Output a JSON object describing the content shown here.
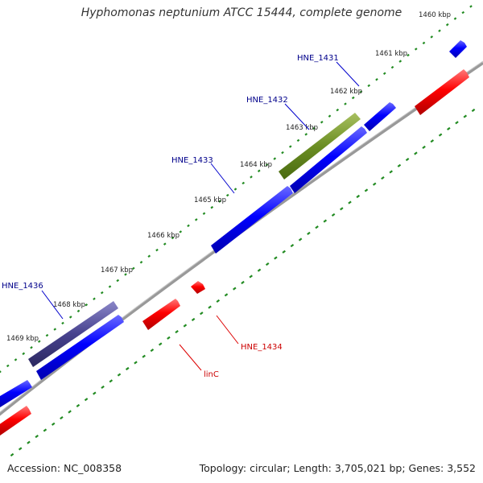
{
  "title": "Hyphomonas neptunium ATCC 15444, complete genome",
  "footer": {
    "accession": "Accession: NC_008358",
    "summary": "Topology: circular; Length: 3,705,021 bp; Genes: 3,552"
  },
  "colors": {
    "forward": "#0000ff",
    "reverse": "#ff0000",
    "rna": "#6b8e23",
    "highlight": "#47428e",
    "backbone": "#888888",
    "tick": "#228b22",
    "forward_label": "#00008b",
    "reverse_label": "#cc0000"
  },
  "kbp_ticks": [
    "1460 kbp",
    "1461 kbp",
    "1462 kbp",
    "1463 kbp",
    "1464 kbp",
    "1465 kbp",
    "1466 kbp",
    "1467 kbp",
    "1468 kbp",
    "1469 kbp"
  ],
  "gene_labels": {
    "hne_1431": "HNE_1431",
    "hne_1432": "HNE_1432",
    "hne_1433": "HNE_1433",
    "hne_1436": "HNE_1436",
    "hne_1434": "HNE_1434",
    "linc": "linC"
  }
}
